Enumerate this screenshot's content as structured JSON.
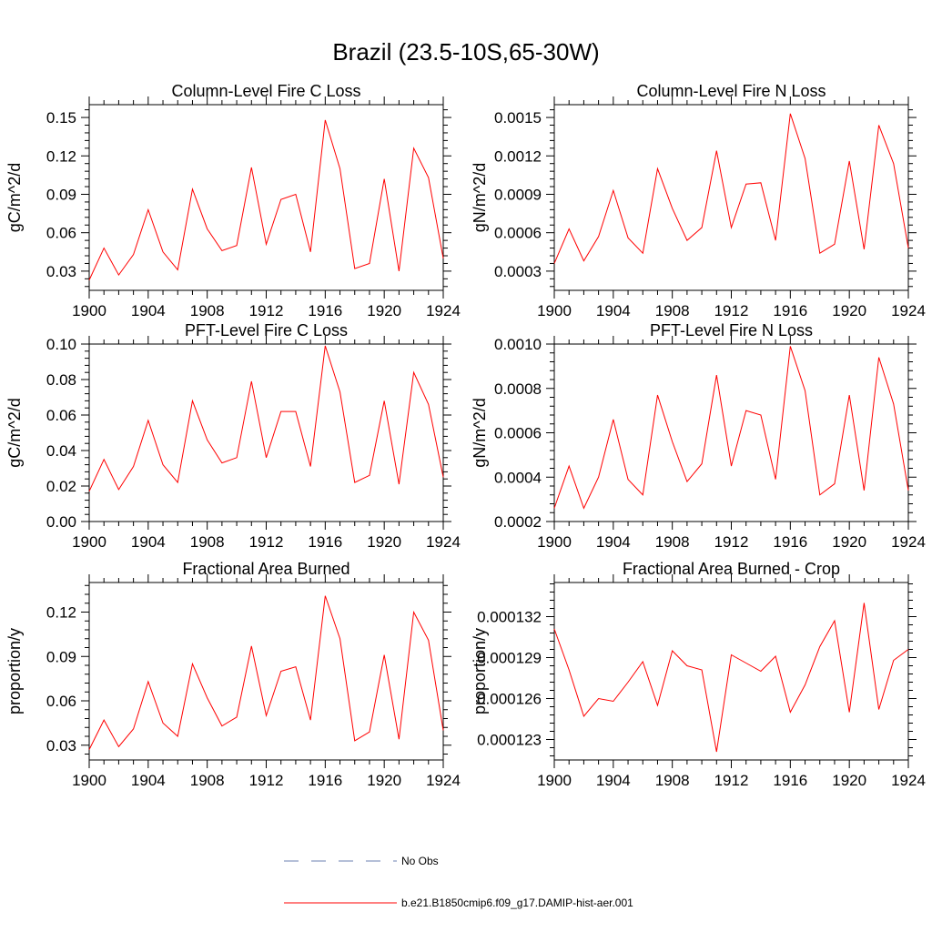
{
  "title": "Brazil (23.5-10S,65-30W)",
  "colors": {
    "model": "#ff0000",
    "obs": "#6b7fb0",
    "axis": "#000000"
  },
  "legend": {
    "items": [
      {
        "label": "No Obs",
        "style": "dashed",
        "color": "#6b7fb0"
      },
      {
        "label": "b.e21.B1850cmip6.f09_g17.DAMIP-hist-aer.001",
        "style": "solid",
        "color": "#ff0000"
      }
    ]
  },
  "chart_data": [
    {
      "type": "line",
      "title": "Column-Level Fire C Loss",
      "ylabel": "gC/m^2/d",
      "xlim": [
        1900,
        1924
      ],
      "ylim": [
        0.015,
        0.16
      ],
      "xticks": [
        1900,
        1904,
        1908,
        1912,
        1916,
        1920,
        1924
      ],
      "xtick_labels": [
        "1900",
        "1904",
        "1908",
        "1912",
        "1916",
        "1920",
        "1924"
      ],
      "yticks": [
        0.03,
        0.06,
        0.09,
        0.12,
        0.15
      ],
      "ytick_labels": [
        "0.03",
        "0.06",
        "0.09",
        "0.12",
        "0.15"
      ],
      "x": [
        1900,
        1901,
        1902,
        1903,
        1904,
        1905,
        1906,
        1907,
        1908,
        1909,
        1910,
        1911,
        1912,
        1913,
        1914,
        1915,
        1916,
        1917,
        1918,
        1919,
        1920,
        1921,
        1922,
        1923,
        1924
      ],
      "series": [
        {
          "name": "b.e21.B1850cmip6.f09_g17.DAMIP-hist-aer.001",
          "values": [
            0.023,
            0.048,
            0.027,
            0.043,
            0.078,
            0.045,
            0.031,
            0.094,
            0.063,
            0.046,
            0.05,
            0.111,
            0.051,
            0.086,
            0.09,
            0.045,
            0.148,
            0.11,
            0.032,
            0.036,
            0.102,
            0.03,
            0.126,
            0.103,
            0.04
          ]
        }
      ]
    },
    {
      "type": "line",
      "title": "Column-Level Fire N Loss",
      "ylabel": "gN/m^2/d",
      "xlim": [
        1900,
        1924
      ],
      "ylim": [
        0.00015,
        0.0016
      ],
      "xticks": [
        1900,
        1904,
        1908,
        1912,
        1916,
        1920,
        1924
      ],
      "xtick_labels": [
        "1900",
        "1904",
        "1908",
        "1912",
        "1916",
        "1920",
        "1924"
      ],
      "yticks": [
        0.0003,
        0.0006,
        0.0009,
        0.0012,
        0.0015
      ],
      "ytick_labels": [
        "0.0003",
        "0.0006",
        "0.0009",
        "0.0012",
        "0.0015"
      ],
      "x": [
        1900,
        1901,
        1902,
        1903,
        1904,
        1905,
        1906,
        1907,
        1908,
        1909,
        1910,
        1911,
        1912,
        1913,
        1914,
        1915,
        1916,
        1917,
        1918,
        1919,
        1920,
        1921,
        1922,
        1923,
        1924
      ],
      "series": [
        {
          "name": "b.e21.B1850cmip6.f09_g17.DAMIP-hist-aer.001",
          "values": [
            0.00036,
            0.00063,
            0.00038,
            0.00057,
            0.00093,
            0.00056,
            0.00044,
            0.0011,
            0.00079,
            0.00054,
            0.00064,
            0.00124,
            0.00064,
            0.00098,
            0.00099,
            0.00054,
            0.00153,
            0.00118,
            0.00044,
            0.00051,
            0.00116,
            0.00047,
            0.00144,
            0.00114,
            0.00048
          ]
        }
      ]
    },
    {
      "type": "line",
      "title": "PFT-Level Fire C Loss",
      "ylabel": "gC/m^2/d",
      "xlim": [
        1900,
        1924
      ],
      "ylim": [
        0.0,
        0.1
      ],
      "xticks": [
        1900,
        1904,
        1908,
        1912,
        1916,
        1920,
        1924
      ],
      "xtick_labels": [
        "1900",
        "1904",
        "1908",
        "1912",
        "1916",
        "1920",
        "1924"
      ],
      "yticks": [
        0.0,
        0.02,
        0.04,
        0.06,
        0.08,
        0.1
      ],
      "ytick_labels": [
        "0.00",
        "0.02",
        "0.04",
        "0.06",
        "0.08",
        "0.10"
      ],
      "x": [
        1900,
        1901,
        1902,
        1903,
        1904,
        1905,
        1906,
        1907,
        1908,
        1909,
        1910,
        1911,
        1912,
        1913,
        1914,
        1915,
        1916,
        1917,
        1918,
        1919,
        1920,
        1921,
        1922,
        1923,
        1924
      ],
      "series": [
        {
          "name": "b.e21.B1850cmip6.f09_g17.DAMIP-hist-aer.001",
          "values": [
            0.017,
            0.035,
            0.018,
            0.031,
            0.057,
            0.032,
            0.022,
            0.068,
            0.046,
            0.033,
            0.036,
            0.079,
            0.036,
            0.062,
            0.062,
            0.031,
            0.099,
            0.073,
            0.022,
            0.026,
            0.068,
            0.021,
            0.084,
            0.066,
            0.025
          ]
        }
      ]
    },
    {
      "type": "line",
      "title": "PFT-Level Fire N Loss",
      "ylabel": "gN/m^2/d",
      "xlim": [
        1900,
        1924
      ],
      "ylim": [
        0.0002,
        0.001
      ],
      "xticks": [
        1900,
        1904,
        1908,
        1912,
        1916,
        1920,
        1924
      ],
      "xtick_labels": [
        "1900",
        "1904",
        "1908",
        "1912",
        "1916",
        "1920",
        "1924"
      ],
      "yticks": [
        0.0002,
        0.0004,
        0.0006,
        0.0008,
        0.001
      ],
      "ytick_labels": [
        "0.0002",
        "0.0004",
        "0.0006",
        "0.0008",
        "0.0010"
      ],
      "x": [
        1900,
        1901,
        1902,
        1903,
        1904,
        1905,
        1906,
        1907,
        1908,
        1909,
        1910,
        1911,
        1912,
        1913,
        1914,
        1915,
        1916,
        1917,
        1918,
        1919,
        1920,
        1921,
        1922,
        1923,
        1924
      ],
      "series": [
        {
          "name": "b.e21.B1850cmip6.f09_g17.DAMIP-hist-aer.001",
          "values": [
            0.00026,
            0.00045,
            0.00026,
            0.0004,
            0.00066,
            0.00039,
            0.00032,
            0.00077,
            0.00056,
            0.00038,
            0.00046,
            0.00086,
            0.00045,
            0.0007,
            0.00068,
            0.00039,
            0.00099,
            0.00079,
            0.00032,
            0.00037,
            0.00077,
            0.00034,
            0.00094,
            0.00073,
            0.00034
          ]
        }
      ]
    },
    {
      "type": "line",
      "title": "Fractional Area Burned",
      "ylabel": "proportion/y",
      "xlim": [
        1900,
        1924
      ],
      "ylim": [
        0.02,
        0.14
      ],
      "xticks": [
        1900,
        1904,
        1908,
        1912,
        1916,
        1920,
        1924
      ],
      "xtick_labels": [
        "1900",
        "1904",
        "1908",
        "1912",
        "1916",
        "1920",
        "1924"
      ],
      "yticks": [
        0.03,
        0.06,
        0.09,
        0.12
      ],
      "ytick_labels": [
        "0.03",
        "0.06",
        "0.09",
        "0.12"
      ],
      "x": [
        1900,
        1901,
        1902,
        1903,
        1904,
        1905,
        1906,
        1907,
        1908,
        1909,
        1910,
        1911,
        1912,
        1913,
        1914,
        1915,
        1916,
        1917,
        1918,
        1919,
        1920,
        1921,
        1922,
        1923,
        1924
      ],
      "series": [
        {
          "name": "b.e21.B1850cmip6.f09_g17.DAMIP-hist-aer.001",
          "values": [
            0.027,
            0.047,
            0.029,
            0.041,
            0.073,
            0.045,
            0.036,
            0.085,
            0.062,
            0.043,
            0.049,
            0.097,
            0.05,
            0.08,
            0.083,
            0.047,
            0.131,
            0.102,
            0.033,
            0.039,
            0.091,
            0.034,
            0.12,
            0.101,
            0.04
          ]
        }
      ]
    },
    {
      "type": "line",
      "title": "Fractional Area Burned - Crop",
      "ylabel": "proportion/y",
      "xlim": [
        1900,
        1924
      ],
      "ylim": [
        0.0001215,
        0.0001345
      ],
      "xticks": [
        1900,
        1904,
        1908,
        1912,
        1916,
        1920,
        1924
      ],
      "xtick_labels": [
        "1900",
        "1904",
        "1908",
        "1912",
        "1916",
        "1920",
        "1924"
      ],
      "yticks": [
        0.000123,
        0.000126,
        0.000129,
        0.000132
      ],
      "ytick_labels": [
        "0.000123",
        "0.000126",
        "0.000129",
        "0.000132"
      ],
      "x": [
        1900,
        1901,
        1902,
        1903,
        1904,
        1905,
        1906,
        1907,
        1908,
        1909,
        1910,
        1911,
        1912,
        1913,
        1914,
        1915,
        1916,
        1917,
        1918,
        1919,
        1920,
        1921,
        1922,
        1923,
        1924
      ],
      "series": [
        {
          "name": "b.e21.B1850cmip6.f09_g17.DAMIP-hist-aer.001",
          "values": [
            0.0001311,
            0.0001281,
            0.0001247,
            0.000126,
            0.0001258,
            0.0001272,
            0.0001287,
            0.0001255,
            0.0001295,
            0.0001284,
            0.0001281,
            0.0001221,
            0.0001292,
            0.0001286,
            0.000128,
            0.0001291,
            0.000125,
            0.000127,
            0.0001298,
            0.0001317,
            0.000125,
            0.000133,
            0.0001252,
            0.0001288,
            0.0001296
          ]
        }
      ]
    }
  ]
}
